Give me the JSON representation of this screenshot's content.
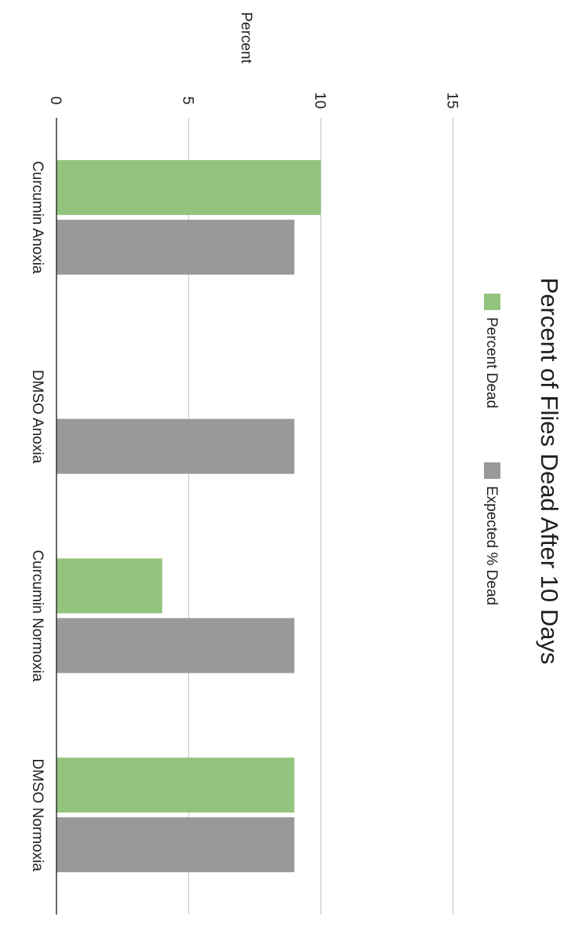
{
  "chart_data": {
    "type": "bar",
    "orientation": "horizontal",
    "title": "Percent of Flies Dead After 10 Days",
    "xlabel": "Percent",
    "ylabel": "",
    "xlim": [
      0,
      15
    ],
    "x_ticks": [
      "0",
      "5",
      "10",
      "15"
    ],
    "grid": true,
    "legend_position": "top",
    "categories": [
      "Curcumin Anoxia",
      "DMSO Anoxia",
      "Curcumin Normoxia",
      "DMSO Normoxia"
    ],
    "series": [
      {
        "name": "Percent Dead",
        "color": "#93c47d",
        "values": [
          10,
          0,
          4,
          9
        ]
      },
      {
        "name": "Expected % Dead",
        "color": "#999999",
        "values": [
          9,
          9,
          9,
          9
        ]
      }
    ]
  }
}
